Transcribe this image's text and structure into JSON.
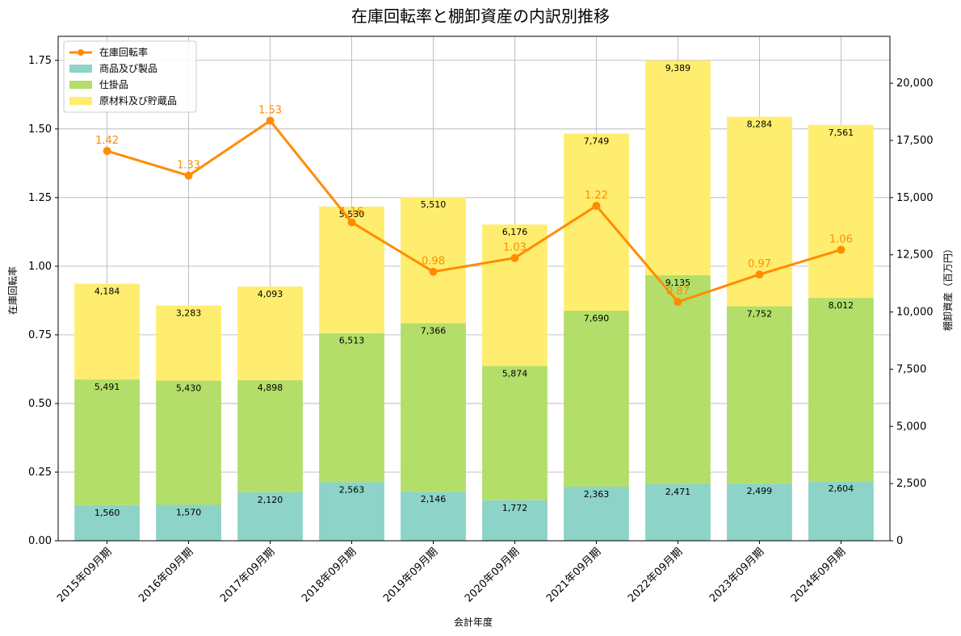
{
  "chart_data": {
    "type": "bar",
    "title": "在庫回転率と棚卸資産の内訳別推移",
    "xlabel": "会計年度",
    "ylabel_left": "在庫回転率",
    "ylabel_right": "棚卸資産（百万円）",
    "categories": [
      "2015年09月期",
      "2016年09月期",
      "2017年09月期",
      "2018年09月期",
      "2019年09月期",
      "2020年09月期",
      "2021年09月期",
      "2022年09月期",
      "2023年09月期",
      "2024年09月期"
    ],
    "ylim_left": [
      0,
      1.8375
    ],
    "ylim_right": [
      0,
      22050
    ],
    "left_ticks": [
      "0.00",
      "0.25",
      "0.50",
      "0.75",
      "1.00",
      "1.25",
      "1.50",
      "1.75"
    ],
    "right_ticks": [
      "0",
      "2,500",
      "5,000",
      "7,500",
      "10,000",
      "12,500",
      "15,000",
      "17,500",
      "20,000"
    ],
    "grid": true,
    "legend_position": "top-left",
    "series": [
      {
        "name": "商品及び製品",
        "kind": "bar",
        "axis": "right",
        "color": "#8dd3c7",
        "values": [
          1560,
          1570,
          2120,
          2563,
          2146,
          1772,
          2363,
          2471,
          2499,
          2604
        ],
        "labels": [
          "1,560",
          "1,570",
          "2,120",
          "2,563",
          "2,146",
          "1,772",
          "2,363",
          "2,471",
          "2,499",
          "2,604"
        ]
      },
      {
        "name": "仕掛品",
        "kind": "bar",
        "axis": "right",
        "color": "#b3de69",
        "values": [
          5491,
          5430,
          4898,
          6513,
          7366,
          5874,
          7690,
          9135,
          7752,
          8012
        ],
        "labels": [
          "5,491",
          "5,430",
          "4,898",
          "6,513",
          "7,366",
          "5,874",
          "7,690",
          "9,135",
          "7,752",
          "8,012"
        ]
      },
      {
        "name": "原材料及び貯蔵品",
        "kind": "bar",
        "axis": "right",
        "color": "#ffed6f",
        "values": [
          4184,
          3283,
          4093,
          5530,
          5510,
          6176,
          7749,
          9389,
          8284,
          7561
        ],
        "labels": [
          "4,184",
          "3,283",
          "4,093",
          "5,530",
          "5,510",
          "6,176",
          "7,749",
          "9,389",
          "8,284",
          "7,561"
        ]
      },
      {
        "name": "在庫回転率",
        "kind": "line",
        "axis": "left",
        "color": "#ff8c00",
        "values": [
          1.42,
          1.33,
          1.53,
          1.16,
          0.98,
          1.03,
          1.22,
          0.87,
          0.97,
          1.06
        ],
        "labels": [
          "1.42",
          "1.33",
          "1.53",
          "1.16",
          "0.98",
          "1.03",
          "1.22",
          "0.87",
          "0.97",
          "1.06"
        ]
      }
    ]
  }
}
